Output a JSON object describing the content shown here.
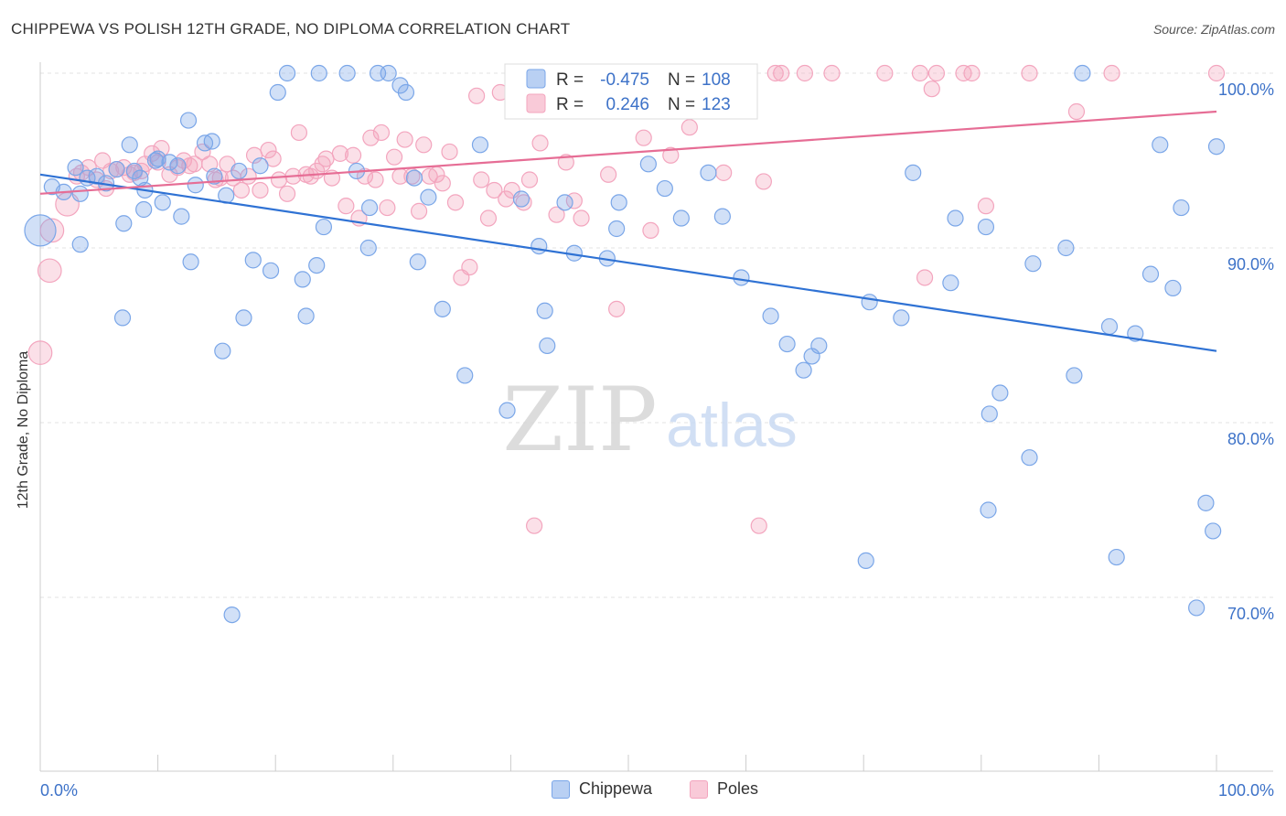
{
  "title": "CHIPPEWA VS POLISH 12TH GRADE, NO DIPLOMA CORRELATION CHART",
  "source": "Source: ZipAtlas.com",
  "chart_data": {
    "type": "scatter",
    "ylabel": "12th Grade, No Diploma",
    "xlim": [
      0,
      100
    ],
    "ylim": [
      60,
      102
    ],
    "x_tick_labels": [
      "0.0%",
      "100.0%"
    ],
    "y_ticks": [
      100,
      90,
      80,
      70
    ],
    "y_tick_labels": [
      "100.0%",
      "90.0%",
      "80.0%",
      "70.0%"
    ],
    "grid": true,
    "legend_position": "top-center",
    "watermark": {
      "zip": "ZIP",
      "atlas": "atlas"
    },
    "colors": {
      "chippewa": "#7aa6e8",
      "poles": "#f3a5be",
      "chippewa_line": "#2f72d4",
      "poles_line": "#e66d95",
      "tick_label": "#3d72c8"
    },
    "series": [
      {
        "name": "Chippewa",
        "stats": {
          "r_label": "R =",
          "r": "-0.475",
          "n_label": "N =",
          "n": "108"
        },
        "trend": {
          "x": [
            0,
            100
          ],
          "y": [
            94.2,
            84.1
          ]
        },
        "points": [
          [
            0,
            91,
            2
          ],
          [
            1,
            93.5,
            1
          ],
          [
            2,
            93.2,
            1
          ],
          [
            3,
            94.6,
            1
          ],
          [
            3.4,
            93.1,
            1
          ],
          [
            4,
            94,
            1
          ],
          [
            4.8,
            94.1,
            1
          ],
          [
            5.6,
            93.7,
            1
          ],
          [
            3.4,
            90.2,
            1
          ],
          [
            6.5,
            94.5,
            1
          ],
          [
            7,
            86,
            1
          ],
          [
            7.1,
            91.4,
            1
          ],
          [
            7.6,
            95.9,
            1
          ],
          [
            8,
            94.4,
            1
          ],
          [
            8.5,
            94,
            1
          ],
          [
            8.8,
            92.2,
            1
          ],
          [
            8.9,
            93.3,
            1
          ],
          [
            9.8,
            95,
            1
          ],
          [
            10,
            95.1,
            1
          ],
          [
            10.4,
            92.6,
            1
          ],
          [
            11,
            94.9,
            1
          ],
          [
            11.7,
            94.7,
            1
          ],
          [
            12,
            91.8,
            1
          ],
          [
            12.6,
            97.3,
            1
          ],
          [
            12.8,
            89.2,
            1
          ],
          [
            13.2,
            93.6,
            1
          ],
          [
            14,
            96,
            1
          ],
          [
            14.6,
            96.1,
            1
          ],
          [
            14.8,
            94.1,
            1
          ],
          [
            15.5,
            84.1,
            1
          ],
          [
            15.8,
            93,
            1
          ],
          [
            16.3,
            69,
            1
          ],
          [
            16.9,
            94.4,
            1
          ],
          [
            17.3,
            86,
            1
          ],
          [
            18.1,
            89.3,
            1
          ],
          [
            18.7,
            94.7,
            1
          ],
          [
            19.6,
            88.7,
            1
          ],
          [
            20.2,
            98.9,
            1
          ],
          [
            21,
            100,
            1
          ],
          [
            22.3,
            88.2,
            1
          ],
          [
            22.6,
            86.1,
            1
          ],
          [
            23.5,
            89,
            1
          ],
          [
            23.7,
            100,
            1
          ],
          [
            24.1,
            91.2,
            1
          ],
          [
            26.1,
            100,
            1
          ],
          [
            26.9,
            94.4,
            1
          ],
          [
            27.9,
            90,
            1
          ],
          [
            28,
            92.3,
            1
          ],
          [
            28.7,
            100,
            1
          ],
          [
            29.6,
            100,
            1
          ],
          [
            30.6,
            99.3,
            1
          ],
          [
            31.1,
            98.9,
            1
          ],
          [
            31.8,
            94,
            1
          ],
          [
            32.1,
            89.2,
            1
          ],
          [
            33,
            92.9,
            1
          ],
          [
            34.2,
            86.5,
            1
          ],
          [
            36.1,
            82.7,
            1
          ],
          [
            37.4,
            95.9,
            1
          ],
          [
            39.7,
            80.7,
            1
          ],
          [
            40.9,
            92.8,
            1
          ],
          [
            42.4,
            90.1,
            1
          ],
          [
            42.9,
            86.4,
            1
          ],
          [
            43.1,
            84.4,
            1
          ],
          [
            44.6,
            92.6,
            1
          ],
          [
            45.4,
            89.7,
            1
          ],
          [
            46.2,
            100,
            1
          ],
          [
            48.2,
            89.4,
            1
          ],
          [
            49,
            91.1,
            1
          ],
          [
            49.2,
            92.6,
            1
          ],
          [
            50,
            100,
            1
          ],
          [
            51.7,
            94.8,
            1
          ],
          [
            53.1,
            93.4,
            1
          ],
          [
            54.5,
            91.7,
            1
          ],
          [
            56.8,
            94.3,
            1
          ],
          [
            58,
            91.8,
            1
          ],
          [
            59.6,
            88.3,
            1
          ],
          [
            62.1,
            86.1,
            1
          ],
          [
            63.5,
            84.5,
            1
          ],
          [
            64.9,
            83,
            1
          ],
          [
            65.6,
            83.8,
            1
          ],
          [
            66.2,
            84.4,
            1
          ],
          [
            70.2,
            72.1,
            1
          ],
          [
            70.5,
            86.9,
            1
          ],
          [
            73.2,
            86,
            1
          ],
          [
            74.2,
            94.3,
            1
          ],
          [
            77.4,
            88,
            1
          ],
          [
            77.8,
            91.7,
            1
          ],
          [
            80.4,
            91.2,
            1
          ],
          [
            80.6,
            75,
            1
          ],
          [
            80.7,
            80.5,
            1
          ],
          [
            81.6,
            81.7,
            1
          ],
          [
            84.1,
            78,
            1
          ],
          [
            84.4,
            89.1,
            1
          ],
          [
            87.2,
            90,
            1
          ],
          [
            87.9,
            82.7,
            1
          ],
          [
            88.6,
            100,
            1
          ],
          [
            90.9,
            85.5,
            1
          ],
          [
            91.5,
            72.3,
            1
          ],
          [
            93.1,
            85.1,
            1
          ],
          [
            94.4,
            88.5,
            1
          ],
          [
            95.2,
            95.9,
            1
          ],
          [
            96.3,
            87.7,
            1
          ],
          [
            97,
            92.3,
            1
          ],
          [
            98.3,
            69.4,
            1
          ],
          [
            99.1,
            75.4,
            1
          ],
          [
            99.7,
            73.8,
            1
          ],
          [
            100,
            95.8,
            1
          ]
        ]
      },
      {
        "name": "Poles",
        "stats": {
          "r_label": "R =",
          "r": "0.246",
          "n_label": "N =",
          "n": "123"
        },
        "trend": {
          "x": [
            0,
            100
          ],
          "y": [
            93.1,
            97.8
          ]
        },
        "points": [
          [
            0,
            84,
            1.5
          ],
          [
            0.8,
            88.7,
            1.5
          ],
          [
            1,
            91,
            1.5
          ],
          [
            2.3,
            92.5,
            1.5
          ],
          [
            3.1,
            94.1,
            1
          ],
          [
            3.5,
            94.3,
            1
          ],
          [
            4.1,
            94.6,
            1
          ],
          [
            4.8,
            93.9,
            1
          ],
          [
            5.3,
            95,
            1
          ],
          [
            5.6,
            93.4,
            1
          ],
          [
            6,
            94.4,
            1
          ],
          [
            6.5,
            94.5,
            1
          ],
          [
            7.1,
            94.6,
            1
          ],
          [
            7.6,
            94.2,
            1
          ],
          [
            8,
            94.3,
            1
          ],
          [
            8.6,
            94.4,
            1
          ],
          [
            8.9,
            94.8,
            1
          ],
          [
            9.5,
            95.4,
            1
          ],
          [
            10,
            94.9,
            1
          ],
          [
            10.3,
            95.7,
            1
          ],
          [
            11,
            94.2,
            1
          ],
          [
            11.7,
            94.6,
            1
          ],
          [
            12.2,
            95,
            1
          ],
          [
            12.7,
            94.7,
            1
          ],
          [
            13.1,
            94.8,
            1
          ],
          [
            13.8,
            95.5,
            1
          ],
          [
            14.4,
            94.8,
            1
          ],
          [
            14.9,
            93.9,
            1
          ],
          [
            15.3,
            94,
            1
          ],
          [
            15.9,
            94.8,
            1
          ],
          [
            16.4,
            94,
            1
          ],
          [
            17.1,
            93.3,
            1
          ],
          [
            17.7,
            94.1,
            1
          ],
          [
            18.2,
            95.3,
            1
          ],
          [
            18.7,
            93.3,
            1
          ],
          [
            19.4,
            95.6,
            1
          ],
          [
            19.8,
            95.1,
            1
          ],
          [
            20.3,
            93.9,
            1
          ],
          [
            21,
            93.1,
            1
          ],
          [
            21.5,
            94.1,
            1
          ],
          [
            22,
            96.6,
            1
          ],
          [
            22.6,
            94.2,
            1
          ],
          [
            23,
            94.1,
            1
          ],
          [
            23.5,
            94.4,
            1
          ],
          [
            24,
            94.8,
            1
          ],
          [
            24.3,
            95.1,
            1
          ],
          [
            24.8,
            94,
            1
          ],
          [
            25.5,
            95.4,
            1
          ],
          [
            26,
            92.4,
            1
          ],
          [
            26.6,
            95.3,
            1
          ],
          [
            27.1,
            91.7,
            1
          ],
          [
            27.6,
            94.1,
            1
          ],
          [
            28.1,
            96.3,
            1
          ],
          [
            28.5,
            93.9,
            1
          ],
          [
            29,
            96.6,
            1
          ],
          [
            29.5,
            92.3,
            1
          ],
          [
            30.1,
            95.2,
            1
          ],
          [
            30.6,
            94.1,
            1
          ],
          [
            31,
            96.2,
            1
          ],
          [
            31.6,
            94.1,
            1
          ],
          [
            32.2,
            92.1,
            1
          ],
          [
            32.6,
            95.9,
            1
          ],
          [
            33.1,
            94.1,
            1
          ],
          [
            33.7,
            94.2,
            1
          ],
          [
            34.2,
            93.7,
            1
          ],
          [
            34.8,
            95.5,
            1
          ],
          [
            35.3,
            92.6,
            1
          ],
          [
            35.8,
            88.3,
            1
          ],
          [
            36.5,
            88.9,
            1
          ],
          [
            37.1,
            98.7,
            1
          ],
          [
            37.5,
            93.9,
            1
          ],
          [
            38.1,
            91.7,
            1
          ],
          [
            38.6,
            93.3,
            1
          ],
          [
            39.1,
            98.9,
            1
          ],
          [
            39.6,
            92.8,
            1
          ],
          [
            40.1,
            93.3,
            1
          ],
          [
            40.5,
            99.2,
            1
          ],
          [
            41.1,
            92.6,
            1
          ],
          [
            41.6,
            93.9,
            1
          ],
          [
            42,
            74.1,
            1
          ],
          [
            42.5,
            96,
            1
          ],
          [
            43.2,
            100,
            1
          ],
          [
            43.9,
            91.9,
            1
          ],
          [
            44.7,
            94.9,
            1
          ],
          [
            45.4,
            92.7,
            1
          ],
          [
            46,
            91.7,
            1
          ],
          [
            46.8,
            100,
            1
          ],
          [
            47.6,
            100,
            1
          ],
          [
            48.3,
            94.2,
            1
          ],
          [
            49,
            86.5,
            1
          ],
          [
            49.6,
            98.9,
            1
          ],
          [
            50.4,
            100,
            1
          ],
          [
            51.3,
            96.3,
            1
          ],
          [
            51.9,
            91,
            1
          ],
          [
            52.8,
            99.5,
            1
          ],
          [
            53.6,
            95.3,
            1
          ],
          [
            54.5,
            100,
            1
          ],
          [
            55.2,
            96.9,
            1
          ],
          [
            55.8,
            98.4,
            1
          ],
          [
            57.1,
            100,
            1
          ],
          [
            58.1,
            94.3,
            1
          ],
          [
            60.2,
            100,
            1
          ],
          [
            61.1,
            74.1,
            1
          ],
          [
            61.5,
            93.8,
            1
          ],
          [
            62.5,
            100,
            1
          ],
          [
            63,
            100,
            1
          ],
          [
            65,
            100,
            1
          ],
          [
            67.3,
            100,
            1
          ],
          [
            71.8,
            100,
            1
          ],
          [
            74.8,
            100,
            1
          ],
          [
            75.2,
            88.3,
            1
          ],
          [
            75.8,
            99.1,
            1
          ],
          [
            76.2,
            100,
            1
          ],
          [
            78.5,
            100,
            1
          ],
          [
            79.2,
            100,
            1
          ],
          [
            80.4,
            92.4,
            1
          ],
          [
            84.1,
            100,
            1
          ],
          [
            88.1,
            97.8,
            1
          ],
          [
            91.1,
            100,
            1
          ],
          [
            100,
            100,
            1
          ]
        ]
      }
    ]
  }
}
